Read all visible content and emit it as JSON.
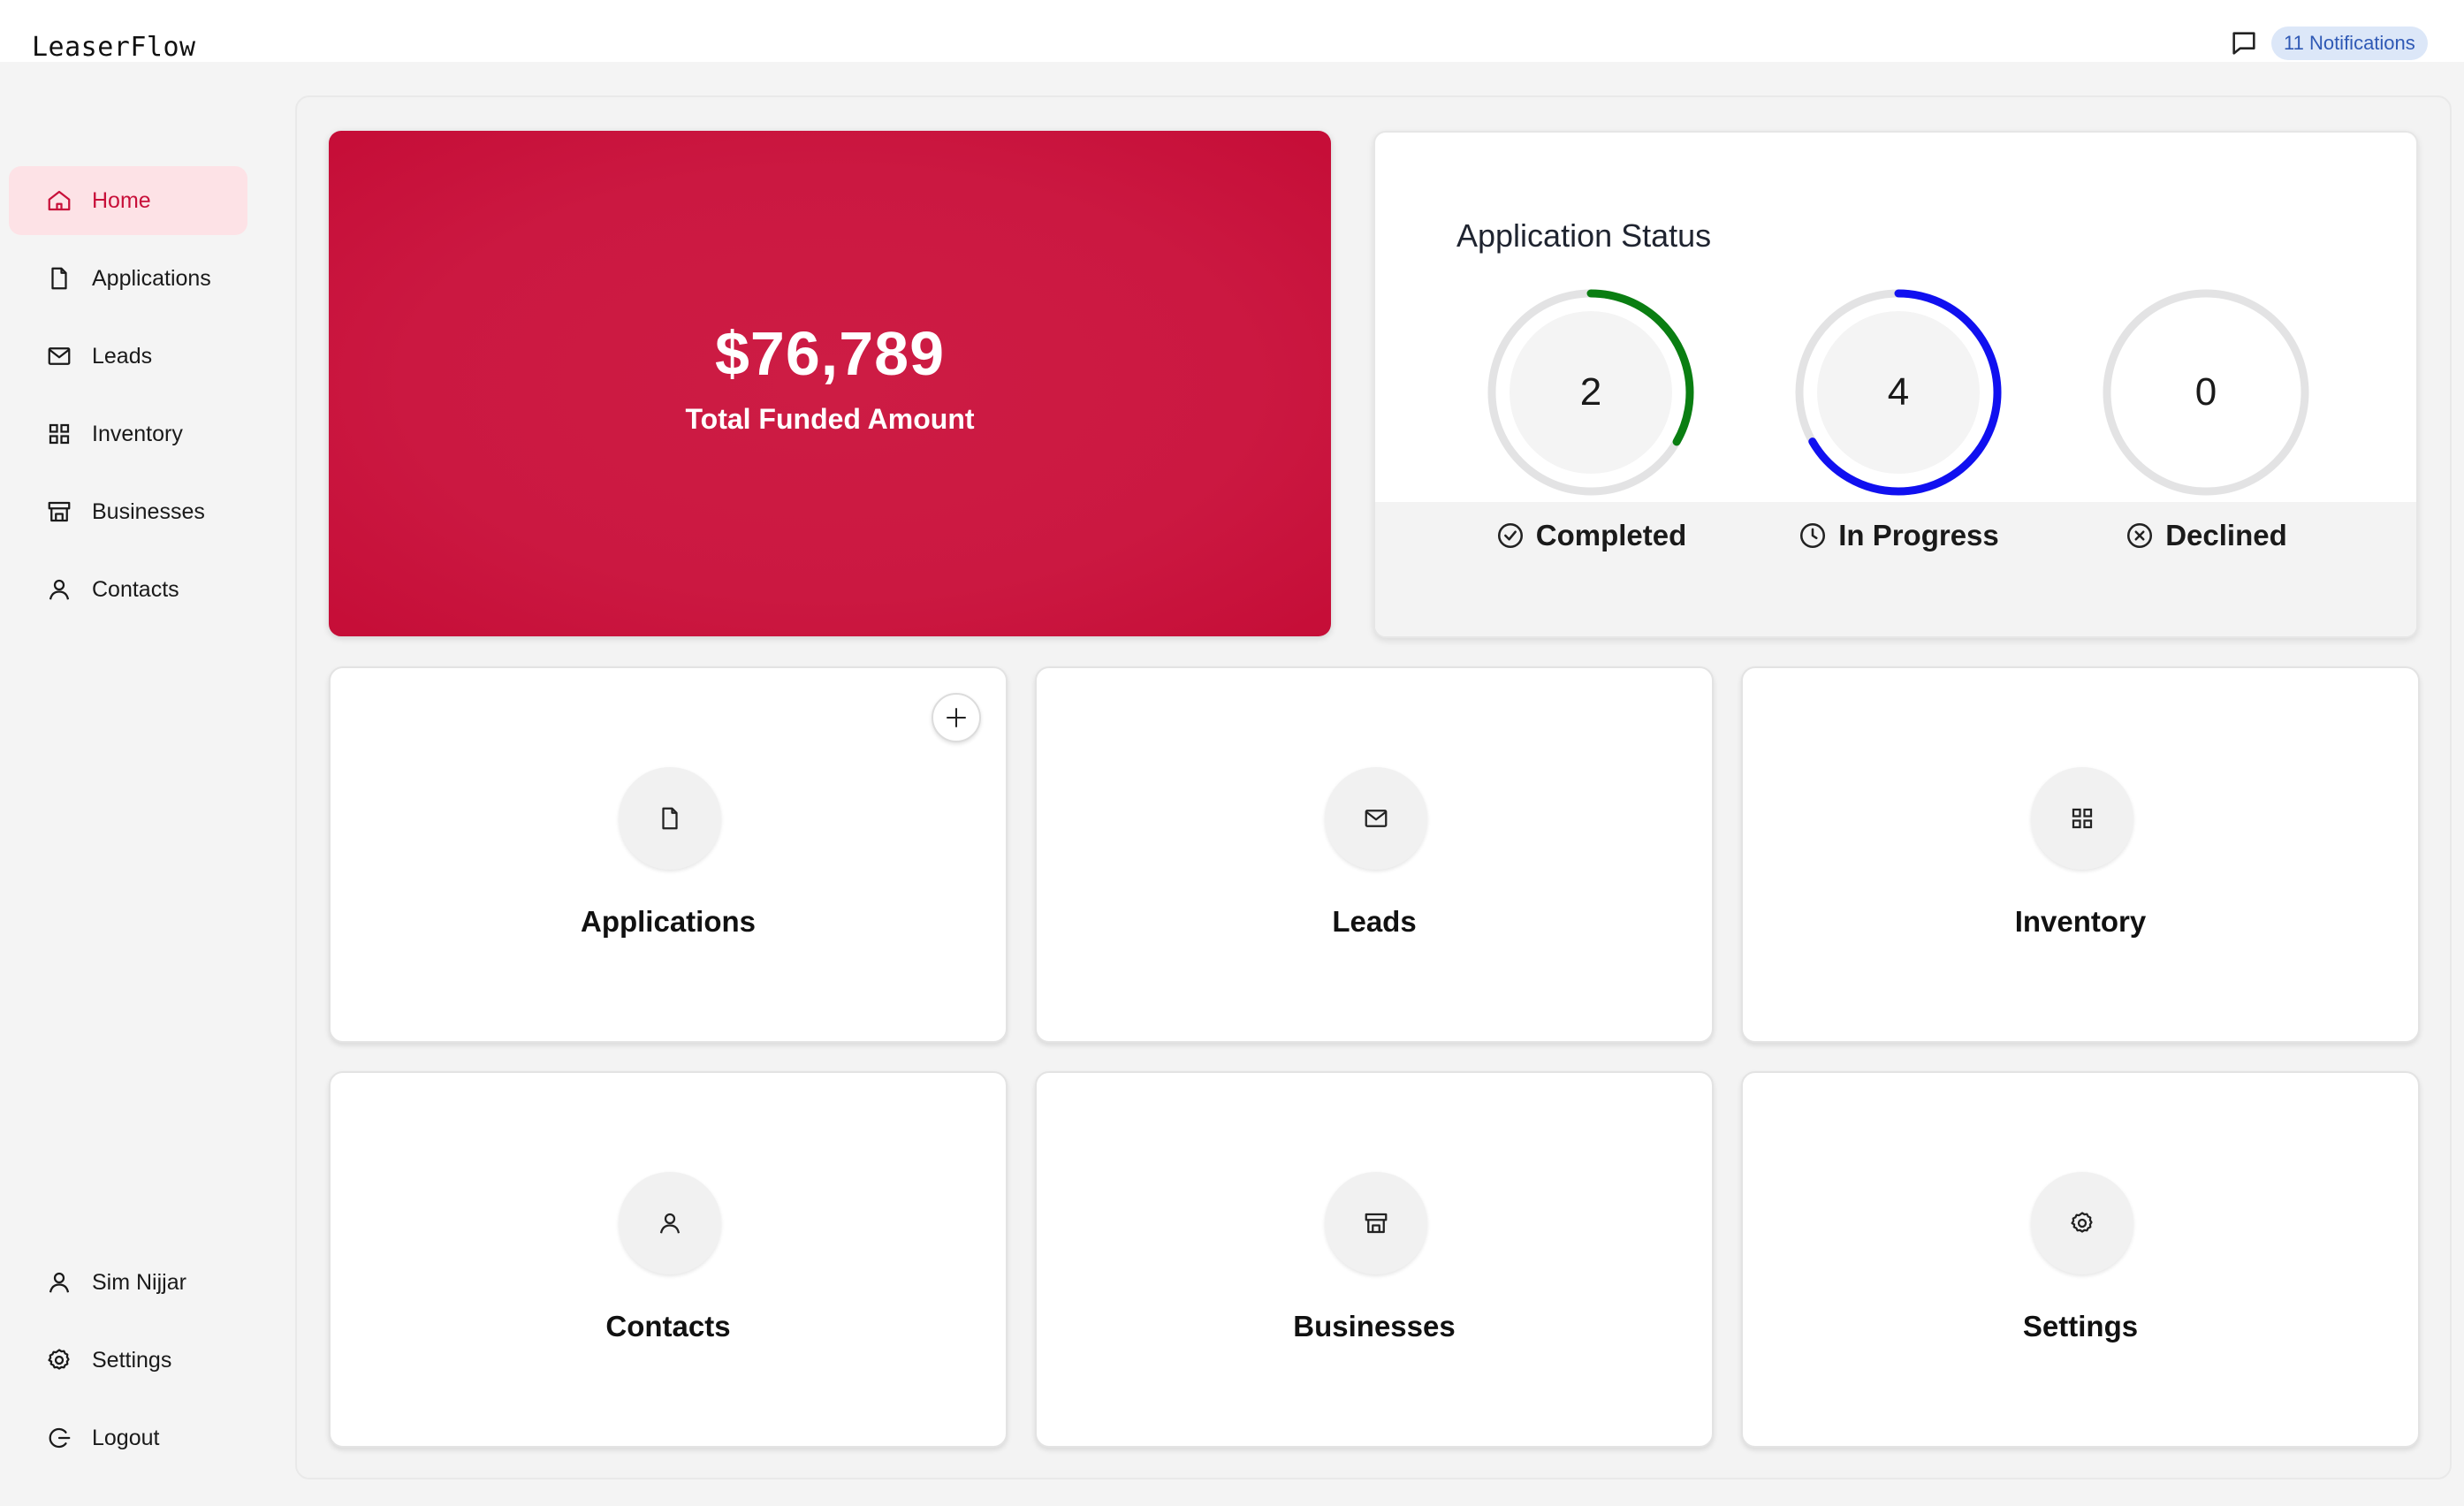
{
  "app": {
    "brand": "LeaserFlow"
  },
  "header": {
    "notifications_label": "11 Notifications"
  },
  "colors": {
    "accent": "#c8103a",
    "completed": "#0a7e12",
    "in_progress": "#1010f0",
    "declined": "#e3e3e3",
    "badge_bg": "#dce7f8",
    "badge_text": "#2f59b5"
  },
  "sidebar": {
    "items": [
      {
        "label": "Home",
        "icon": "home-icon",
        "active": true
      },
      {
        "label": "Applications",
        "icon": "file-icon"
      },
      {
        "label": "Leads",
        "icon": "mail-icon"
      },
      {
        "label": "Inventory",
        "icon": "grid-icon"
      },
      {
        "label": "Businesses",
        "icon": "store-icon"
      },
      {
        "label": "Contacts",
        "icon": "user-icon"
      }
    ],
    "footer": [
      {
        "label": "Sim Nijjar",
        "icon": "user-icon"
      },
      {
        "label": "Settings",
        "icon": "gear-icon"
      },
      {
        "label": "Logout",
        "icon": "logout-icon"
      }
    ]
  },
  "funded": {
    "amount": "$76,789",
    "label": "Total Funded Amount"
  },
  "status": {
    "title": "Application Status",
    "items": [
      {
        "value": "2",
        "label": "Completed",
        "icon": "check-circle-icon",
        "fraction": 0.333
      },
      {
        "value": "4",
        "label": "In Progress",
        "icon": "clock-icon",
        "fraction": 0.667
      },
      {
        "value": "0",
        "label": "Declined",
        "icon": "x-circle-icon",
        "fraction": 0
      }
    ]
  },
  "tiles": [
    {
      "label": "Applications",
      "icon": "file-icon",
      "add_icon": "plus-icon"
    },
    {
      "label": "Leads",
      "icon": "mail-icon"
    },
    {
      "label": "Inventory",
      "icon": "grid-icon"
    },
    {
      "label": "Contacts",
      "icon": "user-icon"
    },
    {
      "label": "Businesses",
      "icon": "store-icon"
    },
    {
      "label": "Settings",
      "icon": "gear-icon"
    }
  ]
}
